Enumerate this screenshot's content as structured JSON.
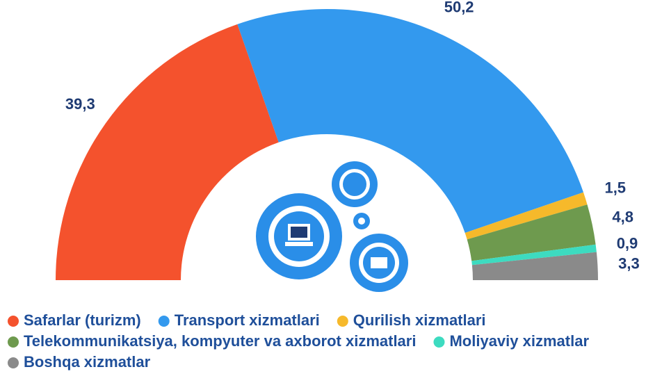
{
  "chart_data": {
    "type": "pie",
    "categories": [
      "Safarlar (turizm)",
      "Transport xizmatlari",
      "Qurilish xizmatlari",
      "Telekommunikatsiya, kompyuter va axborot xizmatlari",
      "Moliyaviy xizmatlar",
      "Boshqa xizmatlar"
    ],
    "values": [
      39.3,
      50.2,
      1.5,
      4.8,
      0.9,
      3.3
    ],
    "value_labels": [
      "39,3",
      "50,2",
      "1,5",
      "4,8",
      "0,9",
      "3,3"
    ],
    "colors": [
      "#f4522d",
      "#3399ee",
      "#f6b92b",
      "#6e9a4e",
      "#3ddbc0",
      "#8a8a8a"
    ]
  }
}
